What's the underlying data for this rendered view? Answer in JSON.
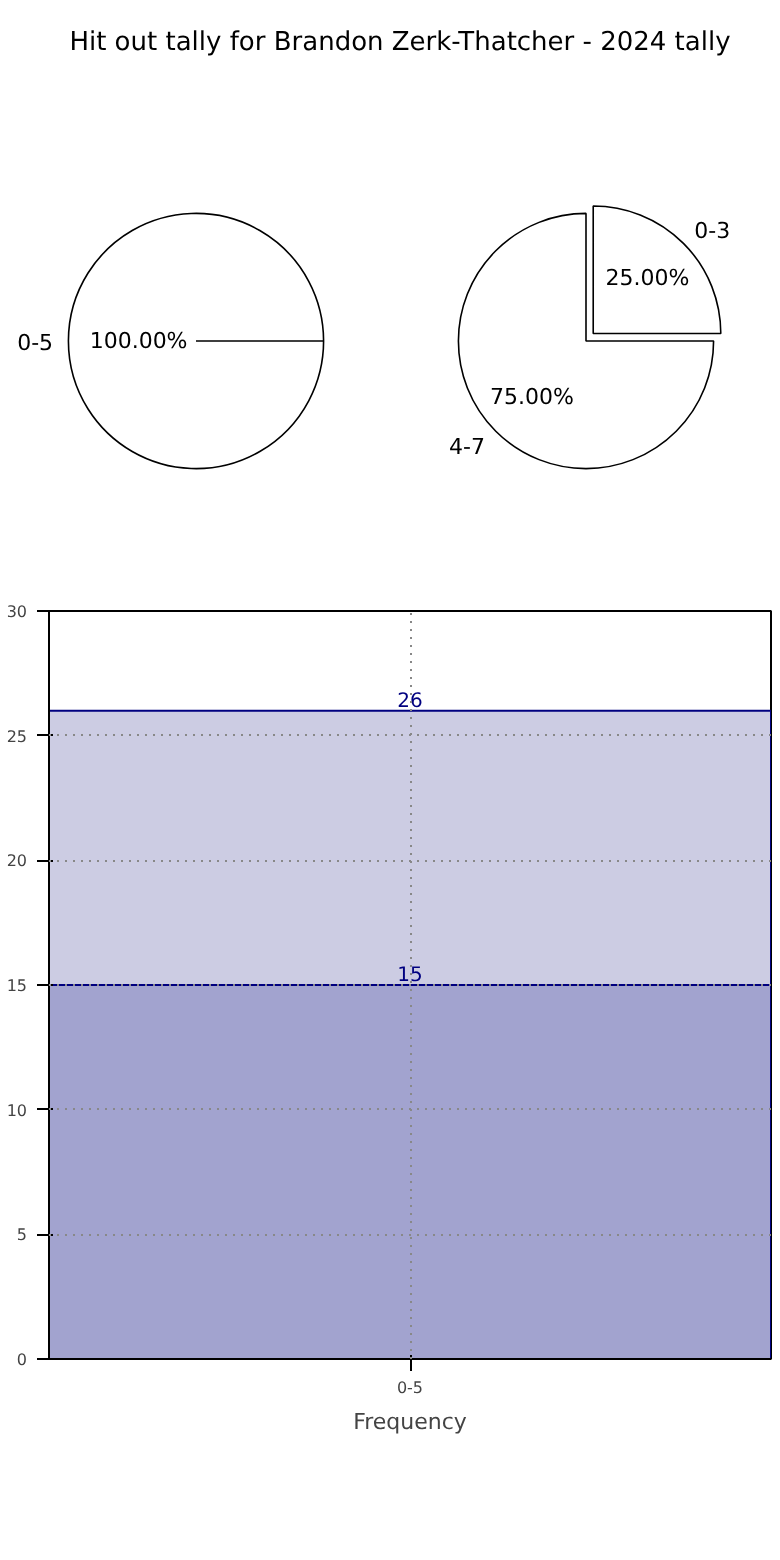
{
  "chart_data": [
    {
      "type": "pie",
      "title": "Hit out tally for Brandon Zerk-Thatcher - 2024 tally",
      "categories": [
        "0-5"
      ],
      "values": [
        100
      ],
      "value_labels": [
        "100.00%"
      ],
      "colors": [
        "#ffffff"
      ]
    },
    {
      "type": "pie",
      "categories": [
        "0-3",
        "4-7"
      ],
      "values": [
        25,
        75
      ],
      "value_labels": [
        "25.00%",
        "75.00%"
      ],
      "colors": [
        "#ffffff",
        "#ffffff"
      ]
    },
    {
      "type": "bar",
      "xlabel": "Frequency",
      "categories": [
        "0-5"
      ],
      "stacked": true,
      "series": [
        {
          "color": "#a2a3cf",
          "values": [
            15
          ],
          "value_labels": [
            "15"
          ]
        },
        {
          "color": "#cccce3",
          "values": [
            11
          ]
        }
      ],
      "totals": [
        "26"
      ],
      "ylim": [
        0,
        30
      ],
      "yticks": [
        0,
        5,
        10,
        15,
        20,
        25,
        30
      ],
      "grid": true
    }
  ]
}
